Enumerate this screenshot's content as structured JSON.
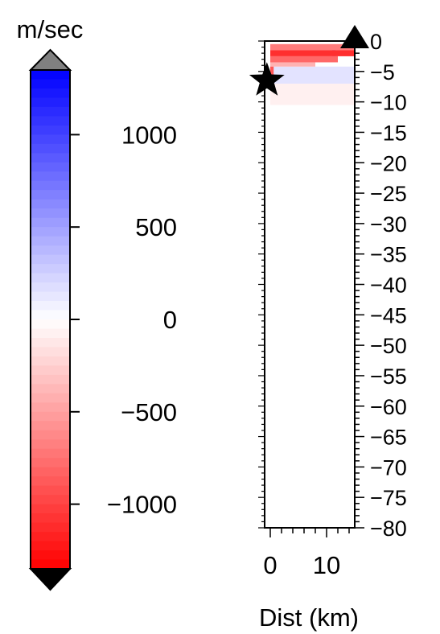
{
  "colorbar": {
    "unit_label": "m/sec",
    "ticks": [
      1000,
      500,
      0,
      -500,
      -1000
    ],
    "tick_labels": [
      "1000",
      "500",
      "0",
      "−500",
      "−1000"
    ],
    "range": [
      -1350,
      1350
    ],
    "colors": {
      "negative": "#ff0000",
      "zero": "#ffffff",
      "positive": "#0000ff",
      "above": "#808080",
      "below": "#000000"
    }
  },
  "chart_data": {
    "type": "heatmap",
    "title": "",
    "xlabel": "Dist (km)",
    "ylabel": "",
    "xlim": [
      -1,
      15
    ],
    "ylim": [
      -80,
      0
    ],
    "x_ticks": [
      0,
      10
    ],
    "x_tick_labels": [
      "0",
      "10"
    ],
    "y_ticks": [
      0,
      -5,
      -10,
      -15,
      -20,
      -25,
      -30,
      -35,
      -40,
      -45,
      -50,
      -55,
      -60,
      -65,
      -70,
      -75,
      -80
    ],
    "y_tick_labels": [
      "0",
      "−5",
      "−10",
      "−15",
      "−20",
      "−25",
      "−30",
      "−35",
      "−40",
      "−45",
      "−50",
      "−55",
      "−60",
      "−65",
      "−70",
      "−75",
      "−80"
    ],
    "markers": [
      {
        "name": "star",
        "x": -0.6,
        "y": -6.5
      },
      {
        "name": "triangle",
        "x": 15,
        "y": 0
      }
    ],
    "anomalies": [
      {
        "x0": 0,
        "x1": 15,
        "y0": -1.5,
        "y1": -0.5,
        "value": -700
      },
      {
        "x0": 0,
        "x1": 15,
        "y0": -2.5,
        "y1": -1.5,
        "value": -1100
      },
      {
        "x0": 0,
        "x1": 12,
        "y0": -3.5,
        "y1": -2.5,
        "value": -800
      },
      {
        "x0": 0,
        "x1": 8,
        "y0": -4.2,
        "y1": -3.5,
        "value": -400
      },
      {
        "x0": 0,
        "x1": 0.6,
        "y0": -5.8,
        "y1": -4.2,
        "value": -900
      },
      {
        "x0": 11,
        "x1": 11.6,
        "y0": -2.5,
        "y1": -0.8,
        "value": 500
      },
      {
        "x0": 0,
        "x1": 15,
        "y0": -7,
        "y1": -4.2,
        "value": 150
      },
      {
        "x0": 0,
        "x1": 15,
        "y0": -10.5,
        "y1": -7,
        "value": -80
      }
    ]
  }
}
